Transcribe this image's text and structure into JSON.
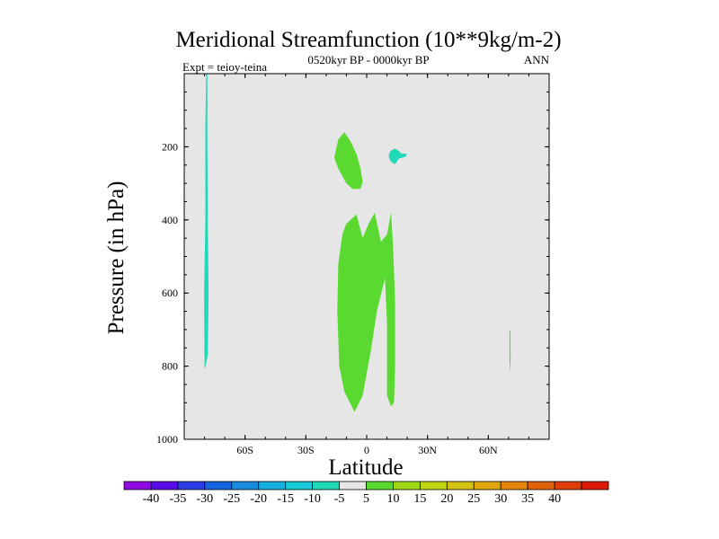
{
  "chart_data": {
    "type": "contour",
    "title": "Meridional Streamfunction (10**9kg/m-2)",
    "subtitle": "0520kyr BP - 0000kyr BP",
    "left_label": "Expt = teioy-teina",
    "right_label": "ANN",
    "xlabel": "Latitude",
    "ylabel": "Pressure (in hPa)",
    "xlim": [
      -90,
      90
    ],
    "ylim": [
      0,
      1000
    ],
    "x_ticks": [
      {
        "value": -60,
        "label": "60S"
      },
      {
        "value": -30,
        "label": "30S"
      },
      {
        "value": 0,
        "label": "0"
      },
      {
        "value": 30,
        "label": "30N"
      },
      {
        "value": 60,
        "label": "60N"
      }
    ],
    "y_ticks": [
      {
        "value": 200,
        "label": "200"
      },
      {
        "value": 400,
        "label": "400"
      },
      {
        "value": 600,
        "label": "600"
      },
      {
        "value": 800,
        "label": "800"
      },
      {
        "value": 1000,
        "label": "1000"
      }
    ],
    "background_color": "#e6e6e6",
    "regions": [
      {
        "name": "negative-cell-southern-high-latitudes",
        "level": "-10 to -5",
        "color": "#20d9b9",
        "points": [
          [
            -79.2,
            0
          ],
          [
            -79.6,
            150
          ],
          [
            -79.6,
            400
          ],
          [
            -80.2,
            600
          ],
          [
            -80.0,
            810
          ],
          [
            -78.4,
            770
          ],
          [
            -78.0,
            600
          ],
          [
            -78.4,
            400
          ],
          [
            -78.6,
            150
          ],
          [
            -78.6,
            0
          ]
        ]
      },
      {
        "name": "positive-cell-upper-troposphere",
        "level": "5 to 10",
        "color": "#5ad930",
        "points": [
          [
            -14,
            180
          ],
          [
            -11,
            160
          ],
          [
            -8,
            185
          ],
          [
            -5,
            220
          ],
          [
            -3,
            260
          ],
          [
            -2,
            295
          ],
          [
            -3,
            315
          ],
          [
            -7,
            315
          ],
          [
            -10,
            300
          ],
          [
            -14,
            260
          ],
          [
            -16,
            230
          ]
        ]
      },
      {
        "name": "negative-cell-upper-troposphere",
        "level": "-10 to -5",
        "color": "#20d9b9",
        "points": [
          [
            11,
            220
          ],
          [
            12,
            210
          ],
          [
            14,
            205
          ],
          [
            16,
            212
          ],
          [
            17,
            218
          ],
          [
            20,
            220
          ],
          [
            19,
            228
          ],
          [
            16,
            232
          ],
          [
            14,
            248
          ],
          [
            12,
            240
          ],
          [
            11,
            230
          ]
        ]
      },
      {
        "name": "positive-cell-lower-troposphere",
        "level": "5 to 10",
        "color": "#5ad930",
        "points": [
          [
            -14,
            520
          ],
          [
            -12,
            440
          ],
          [
            -10,
            410
          ],
          [
            -5,
            385
          ],
          [
            -2,
            450
          ],
          [
            1,
            410
          ],
          [
            4,
            380
          ],
          [
            7,
            460
          ],
          [
            10,
            440
          ],
          [
            12,
            380
          ],
          [
            13,
            470
          ],
          [
            14,
            620
          ],
          [
            14,
            800
          ],
          [
            13.5,
            900
          ],
          [
            12,
            910
          ],
          [
            10,
            880
          ],
          [
            10,
            680
          ],
          [
            9,
            560
          ],
          [
            5,
            650
          ],
          [
            2,
            760
          ],
          [
            -2,
            880
          ],
          [
            -6,
            925
          ],
          [
            -11,
            870
          ],
          [
            -13.5,
            800
          ],
          [
            -14.5,
            650
          ]
        ]
      },
      {
        "name": "positive-cell-northern-high-latitudes",
        "level": "5 to 10",
        "color": "#5ad930",
        "points": [
          [
            70.4,
            700
          ],
          [
            70.9,
            705
          ],
          [
            71.0,
            780
          ],
          [
            70.8,
            815
          ],
          [
            70.5,
            790
          ]
        ]
      }
    ],
    "colorbar": {
      "colors": [
        "#8f0ce5",
        "#5a0ce8",
        "#2e3ee6",
        "#1564e0",
        "#1a8ce0",
        "#16b0e0",
        "#18cad8",
        "#20d9b9",
        "#e6e6e6",
        "#5ad930",
        "#9fd915",
        "#c1d612",
        "#d3c20e",
        "#e0a60a",
        "#e2850a",
        "#e06208",
        "#df3d08",
        "#e01a08"
      ],
      "labels": [
        "-40",
        "-35",
        "-30",
        "-25",
        "-20",
        "-15",
        "-10",
        "-5",
        "5",
        "10",
        "15",
        "20",
        "25",
        "30",
        "35",
        "40"
      ]
    }
  }
}
